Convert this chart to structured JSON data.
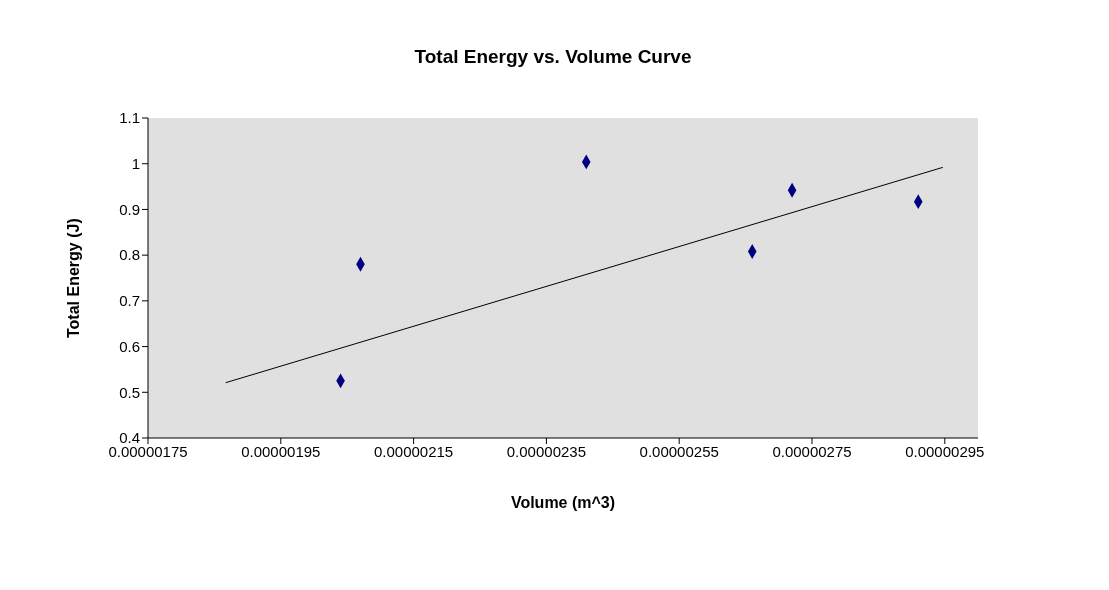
{
  "chart_data": {
    "type": "scatter",
    "title": "Total Energy vs. Volume Curve",
    "xlabel": "Volume (m^3)",
    "ylabel": "Total Energy (J)",
    "series": [
      {
        "type": "scatter",
        "color": "#000080",
        "marker": "diamond",
        "x": [
          2.04e-06,
          2.07e-06,
          2.41e-06,
          2.66e-06,
          2.72e-06,
          2.91e-06
        ],
        "values": [
          0.525,
          0.78,
          1.004,
          0.808,
          0.942,
          0.917
        ]
      },
      {
        "type": "line",
        "color": "#000000",
        "marker": "none",
        "line_style": "solid",
        "x": [
          1.867e-06,
          2.947e-06
        ],
        "values": [
          0.521,
          0.992
        ]
      }
    ],
    "xlim": [
      1.75e-06,
      3e-06
    ],
    "xticks": [
      {
        "value": 1.75e-06,
        "label": "0.00000175"
      },
      {
        "value": 1.95e-06,
        "label": "0.00000195"
      },
      {
        "value": 2.15e-06,
        "label": "0.00000215"
      },
      {
        "value": 2.35e-06,
        "label": "0.00000235"
      },
      {
        "value": 2.55e-06,
        "label": "0.00000255"
      },
      {
        "value": 2.75e-06,
        "label": "0.00000275"
      },
      {
        "value": 2.95e-06,
        "label": "0.00000295"
      }
    ],
    "ylim": [
      0.4,
      1.1
    ],
    "yticks": [
      0.4,
      0.5,
      0.6,
      0.7,
      0.8,
      0.9,
      1,
      1.1
    ],
    "grid": false
  }
}
